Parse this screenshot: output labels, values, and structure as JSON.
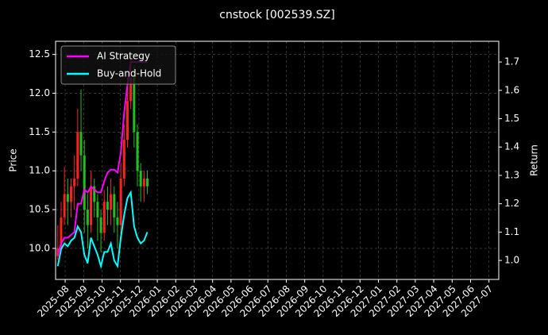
{
  "chart_data": {
    "type": "candlestick",
    "title": "cnstock [002539.SZ]",
    "ylabel": "Price",
    "y2label": "Return",
    "x": [
      -0.4,
      -0.22,
      -0.04,
      0.14,
      0.32,
      0.5,
      0.68,
      0.86,
      1.04,
      1.22,
      1.4,
      1.58,
      1.76,
      1.94,
      2.12,
      2.3,
      2.48,
      2.66,
      2.84,
      3.02,
      3.2,
      3.38,
      3.56,
      3.74,
      3.92,
      4.1,
      4.28,
      4.46
    ],
    "open": [
      9.9,
      10.0,
      10.4,
      10.7,
      10.6,
      10.8,
      10.9,
      11.5,
      11.2,
      10.5,
      10.3,
      10.8,
      10.6,
      10.4,
      10.2,
      10.6,
      10.5,
      10.7,
      10.4,
      10.3,
      10.9,
      11.4,
      11.9,
      12.2,
      11.5,
      11.0,
      10.8,
      10.9
    ],
    "high": [
      10.3,
      10.6,
      11.05,
      10.9,
      10.9,
      11.2,
      11.8,
      12.05,
      11.4,
      10.7,
      11.0,
      10.9,
      10.7,
      10.5,
      10.75,
      10.8,
      10.9,
      10.8,
      10.6,
      11.1,
      11.6,
      12.2,
      12.45,
      12.35,
      11.6,
      11.1,
      11.0,
      11.0
    ],
    "low": [
      9.85,
      9.95,
      10.3,
      10.3,
      10.4,
      10.5,
      10.8,
      11.0,
      10.2,
      10.0,
      10.2,
      10.4,
      10.1,
      9.95,
      10.1,
      10.3,
      10.3,
      10.2,
      10.0,
      10.2,
      10.8,
      11.3,
      11.8,
      11.3,
      10.8,
      10.6,
      10.6,
      10.7
    ],
    "close": [
      10.0,
      10.4,
      10.7,
      10.6,
      10.8,
      10.9,
      11.5,
      11.2,
      10.5,
      10.3,
      10.8,
      10.6,
      10.4,
      10.2,
      10.6,
      10.5,
      10.7,
      10.4,
      10.3,
      10.9,
      11.4,
      11.9,
      12.2,
      11.5,
      11.0,
      10.8,
      10.9,
      10.8
    ],
    "up_color": "#ff2020",
    "down_color": "#20c020",
    "series": [
      {
        "name": "AI Strategy",
        "color": "#ff00ff",
        "axis": "y2",
        "values": [
          1.02,
          1.06,
          1.08,
          1.08,
          1.09,
          1.1,
          1.2,
          1.2,
          1.25,
          1.24,
          1.26,
          1.25,
          1.24,
          1.24,
          1.28,
          1.31,
          1.32,
          1.32,
          1.31,
          1.38,
          1.52,
          1.62,
          1.7,
          1.7,
          1.7,
          1.7,
          1.7,
          1.7
        ]
      },
      {
        "name": "Buy-and-Hold",
        "color": "#00ffff",
        "axis": "y2",
        "values": [
          0.98,
          1.04,
          1.06,
          1.05,
          1.07,
          1.08,
          1.12,
          1.1,
          1.02,
          0.99,
          1.08,
          1.05,
          1.02,
          0.98,
          1.03,
          1.03,
          1.06,
          1.0,
          0.98,
          1.08,
          1.16,
          1.22,
          1.24,
          1.12,
          1.08,
          1.06,
          1.07,
          1.1
        ]
      }
    ],
    "xlim": [
      -0.52,
      23.53
    ],
    "xticks": [
      {
        "value": 0,
        "label": "2025-08"
      },
      {
        "value": 1,
        "label": "2025-09"
      },
      {
        "value": 2,
        "label": "2025-10"
      },
      {
        "value": 3,
        "label": "2025-11"
      },
      {
        "value": 4,
        "label": "2025-12"
      },
      {
        "value": 5,
        "label": "2026-01"
      },
      {
        "value": 6,
        "label": "2026-02"
      },
      {
        "value": 7,
        "label": "2026-03"
      },
      {
        "value": 8,
        "label": "2026-04"
      },
      {
        "value": 9,
        "label": "2026-05"
      },
      {
        "value": 10,
        "label": "2026-06"
      },
      {
        "value": 11,
        "label": "2026-07"
      },
      {
        "value": 12,
        "label": "2026-08"
      },
      {
        "value": 13,
        "label": "2026-09"
      },
      {
        "value": 14,
        "label": "2026-10"
      },
      {
        "value": 15,
        "label": "2026-11"
      },
      {
        "value": 16,
        "label": "2026-12"
      },
      {
        "value": 17,
        "label": "2027-01"
      },
      {
        "value": 18,
        "label": "2027-02"
      },
      {
        "value": 19,
        "label": "2027-03"
      },
      {
        "value": 20,
        "label": "2027-04"
      },
      {
        "value": 21,
        "label": "2027-05"
      },
      {
        "value": 22,
        "label": "2027-06"
      },
      {
        "value": 23,
        "label": "2027-07"
      }
    ],
    "ylim": [
      9.6,
      12.67
    ],
    "yticks": [
      {
        "value": 10,
        "label": "10.0"
      },
      10.5,
      {
        "value": 11,
        "label": "11.0"
      },
      11.5,
      {
        "value": 12,
        "label": "12.0"
      },
      12.5
    ],
    "y2lim": [
      0.933,
      1.773
    ],
    "y2ticks": [
      {
        "value": 1,
        "label": "1.0"
      },
      1.1,
      1.2,
      1.3,
      1.4,
      1.5,
      1.6,
      1.7
    ],
    "grid": true,
    "legend": "upper left"
  }
}
